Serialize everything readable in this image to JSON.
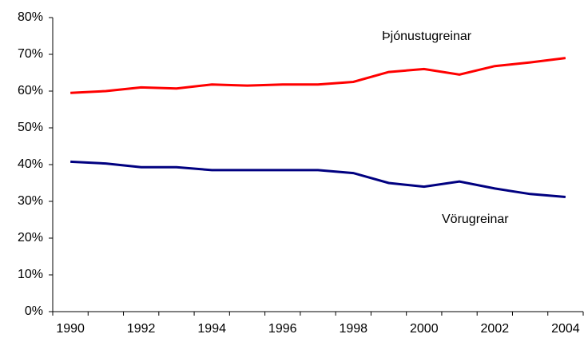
{
  "chart_data": {
    "type": "line",
    "categories": [
      "1990",
      null,
      "1992",
      null,
      "1994",
      null,
      "1996",
      null,
      "1998",
      null,
      "2000",
      null,
      "2002",
      null,
      "2004"
    ],
    "series": [
      {
        "name": "Þjónustugreinar",
        "color": "#ff0000",
        "values": [
          59.5,
          60,
          61,
          60.7,
          61.8,
          61.5,
          61.8,
          61.8,
          62.5,
          65.2,
          66,
          64.5,
          66.8,
          67.8,
          69
        ]
      },
      {
        "name": "Vörugreinar",
        "color": "#000080",
        "values": [
          40.8,
          40.3,
          39.3,
          39.3,
          38.5,
          38.5,
          38.5,
          38.5,
          37.7,
          35,
          34,
          35.4,
          33.5,
          32,
          31.2
        ]
      }
    ],
    "ylim": [
      0,
      80
    ],
    "yticks": [
      {
        "value": 0,
        "label": "0%"
      },
      {
        "value": 10,
        "label": "10%"
      },
      {
        "value": 20,
        "label": "20%"
      },
      {
        "value": 30,
        "label": "30%"
      },
      {
        "value": 40,
        "label": "40%"
      },
      {
        "value": 50,
        "label": "50%"
      },
      {
        "value": 60,
        "label": "60%"
      },
      {
        "value": 70,
        "label": "70%"
      },
      {
        "value": 80,
        "label": "80%"
      }
    ],
    "grid": false
  }
}
